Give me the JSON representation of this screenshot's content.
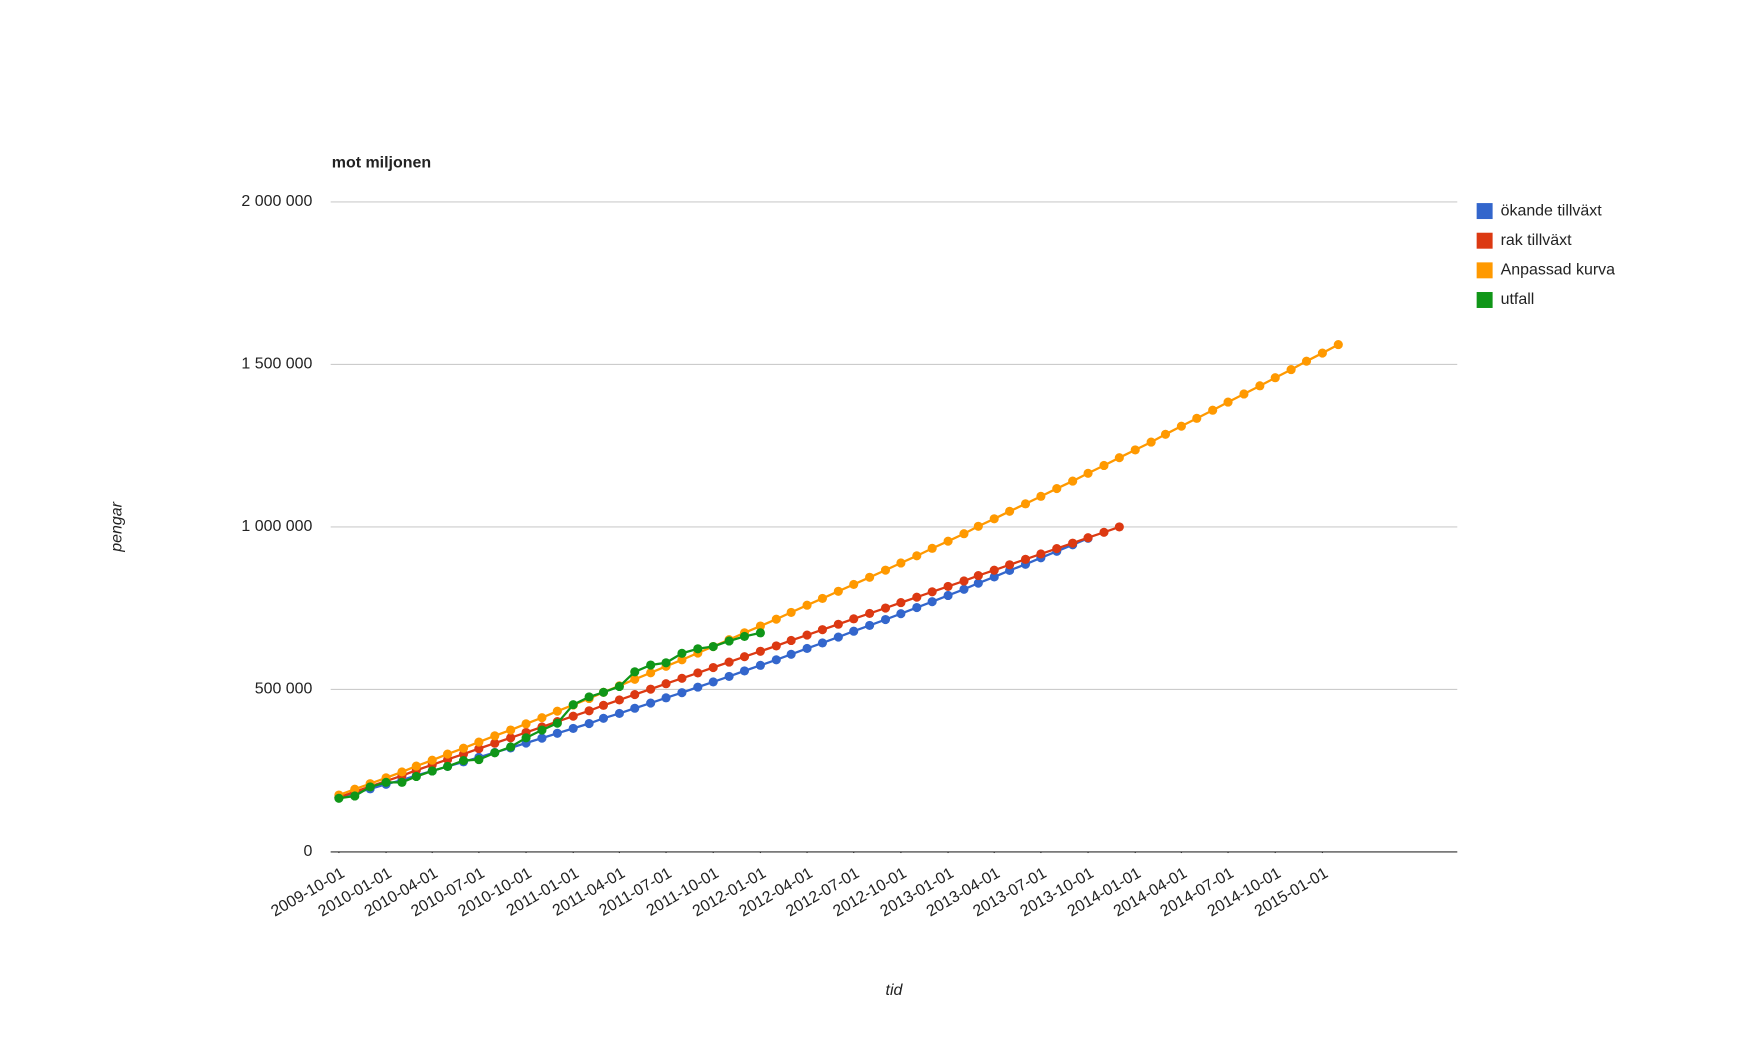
{
  "chart_data": {
    "type": "line",
    "title": "mot miljonen",
    "x_label": "tid",
    "y_label": "pengar",
    "x": [
      "2009-10-01",
      "2009-11-01",
      "2009-12-01",
      "2010-01-01",
      "2010-02-01",
      "2010-03-01",
      "2010-04-01",
      "2010-05-01",
      "2010-06-01",
      "2010-07-01",
      "2010-08-01",
      "2010-09-01",
      "2010-10-01",
      "2010-11-01",
      "2010-12-01",
      "2011-01-01",
      "2011-02-01",
      "2011-03-01",
      "2011-04-01",
      "2011-05-01",
      "2011-06-01",
      "2011-07-01",
      "2011-08-01",
      "2011-09-01",
      "2011-10-01",
      "2011-11-01",
      "2011-12-01",
      "2012-01-01",
      "2012-02-01",
      "2012-03-01",
      "2012-04-01",
      "2012-05-01",
      "2012-06-01",
      "2012-07-01",
      "2012-08-01",
      "2012-09-01",
      "2012-10-01",
      "2012-11-01",
      "2012-12-01",
      "2013-01-01",
      "2013-02-01",
      "2013-03-01",
      "2013-04-01",
      "2013-05-01",
      "2013-06-01",
      "2013-07-01",
      "2013-08-01",
      "2013-09-01",
      "2013-10-01",
      "2013-11-01",
      "2013-12-01",
      "2014-01-01",
      "2014-02-01",
      "2014-03-01",
      "2014-04-01",
      "2014-05-01",
      "2014-06-01",
      "2014-07-01",
      "2014-08-01",
      "2014-09-01",
      "2014-10-01",
      "2014-11-01",
      "2014-12-01",
      "2015-01-01",
      "2015-02-01"
    ],
    "xlim": [
      "2009-09-15",
      "2015-09-21"
    ],
    "xticks": [
      "2009-10-01",
      "2010-01-01",
      "2010-04-01",
      "2010-07-01",
      "2010-10-01",
      "2011-01-01",
      "2011-04-01",
      "2011-07-01",
      "2011-10-01",
      "2012-01-01",
      "2012-04-01",
      "2012-07-01",
      "2012-10-01",
      "2013-01-01",
      "2013-04-01",
      "2013-07-01",
      "2013-10-01",
      "2014-01-01",
      "2014-04-01",
      "2014-07-01",
      "2014-10-01",
      "2015-01-01"
    ],
    "ylim": [
      0,
      2000000
    ],
    "yticks": [
      0,
      {
        "value": 500000,
        "label": "500 000"
      },
      {
        "value": 1000000,
        "label": "1 000 000"
      },
      {
        "value": 1500000,
        "label": "1 500 000"
      },
      {
        "value": 2000000,
        "label": "2 000 000"
      }
    ],
    "grid": true,
    "legend": "right",
    "series": [
      {
        "name": "ökande tillväxt",
        "color": "#3366cc",
        "values": [
          168000,
          181000,
          194000,
          208000,
          221000,
          235000,
          249000,
          263000,
          277000,
          291000,
          306000,
          320000,
          335000,
          350000,
          365000,
          380000,
          395000,
          411000,
          426000,
          442000,
          458000,
          474000,
          490000,
          507000,
          523000,
          540000,
          557000,
          574000,
          591000,
          608000,
          626000,
          643000,
          661000,
          679000,
          697000,
          715000,
          733000,
          752000,
          770000,
          789000,
          808000,
          827000,
          846000,
          866000,
          885000,
          905000,
          925000,
          945000,
          965000,
          null,
          null,
          null,
          null,
          null,
          null,
          null,
          null,
          null,
          null,
          null,
          null,
          null,
          null,
          null,
          null
        ]
      },
      {
        "name": "rak tillväxt",
        "color": "#dc3912",
        "values": [
          168000,
          184640,
          201280,
          217920,
          234560,
          251200,
          267840,
          284480,
          301120,
          317760,
          334400,
          351040,
          367680,
          384320,
          400960,
          417600,
          434240,
          450880,
          467520,
          484160,
          500800,
          517440,
          534080,
          550720,
          567360,
          584000,
          600640,
          617280,
          633920,
          650560,
          667200,
          683840,
          700480,
          717120,
          733760,
          750400,
          767040,
          783680,
          800320,
          816960,
          833600,
          850240,
          866880,
          883520,
          900160,
          916800,
          933440,
          950080,
          966720,
          983360,
          1000000,
          null,
          null,
          null,
          null,
          null,
          null,
          null,
          null,
          null,
          null,
          null,
          null,
          null,
          null
        ]
      },
      {
        "name": "Anpassad kurva",
        "color": "#ff9900",
        "values": [
          175000,
          193000,
          210000,
          228000,
          246000,
          264000,
          282000,
          301000,
          319000,
          338000,
          357000,
          375000,
          394000,
          413000,
          433000,
          452000,
          472000,
          491000,
          511000,
          531000,
          551000,
          571000,
          591000,
          612000,
          632000,
          653000,
          674000,
          695000,
          716000,
          737000,
          759000,
          780000,
          802000,
          823000,
          845000,
          867000,
          889000,
          911000,
          934000,
          956000,
          979000,
          1002000,
          1025000,
          1048000,
          1071000,
          1094000,
          1118000,
          1141000,
          1165000,
          1189000,
          1213000,
          1237000,
          1261000,
          1285000,
          1310000,
          1334000,
          1359000,
          1384000,
          1409000,
          1434000,
          1459000,
          1484000,
          1510000,
          1535000,
          1561000
        ]
      },
      {
        "name": "utfall",
        "color": "#109618",
        "values": [
          165000,
          172000,
          200000,
          214000,
          214000,
          232000,
          249000,
          263000,
          281000,
          284000,
          305000,
          323000,
          351000,
          375000,
          396000,
          453000,
          477000,
          491000,
          509000,
          554000,
          575000,
          582000,
          611000,
          625000,
          632000,
          649000,
          663000,
          674000,
          null,
          null,
          null,
          null,
          null,
          null,
          null,
          null,
          null,
          null,
          null,
          null,
          null,
          null,
          null,
          null,
          null,
          null,
          null,
          null,
          null,
          null,
          null,
          null,
          null,
          null,
          null,
          null,
          null,
          null,
          null,
          null,
          null,
          null,
          null,
          null,
          null
        ]
      }
    ]
  }
}
